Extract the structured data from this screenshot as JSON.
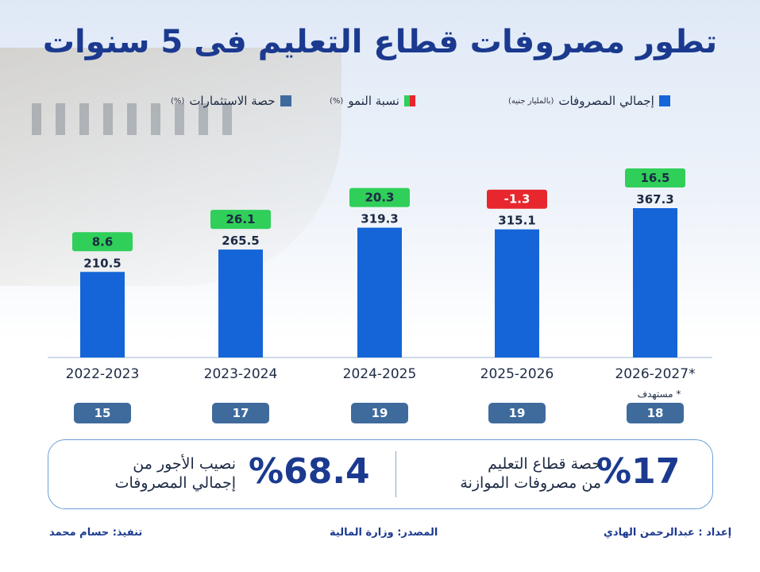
{
  "title": "تطور مصروفات قطاع التعليم فى 5 سنوات",
  "legend": {
    "total": "إجمالي المصروفات",
    "total_unit": "(بالمليار جنيه)",
    "growth": "نسبة النمو",
    "growth_unit": "(%)",
    "invest": "حصة الاستثمارات",
    "invest_unit": "(%)"
  },
  "colors": {
    "bar": "#1565d8",
    "growth_positive": "#2fcf5a",
    "growth_negative": "#e8262d",
    "invest_box": "#3f6b9c",
    "title": "#1b3a8f"
  },
  "chart_data": {
    "type": "bar",
    "categories": [
      "2022-2023",
      "2023-2024",
      "2024-2025",
      "2025-2026",
      "2026-2027*"
    ],
    "series": [
      {
        "name": "إجمالي المصروفات",
        "values": [
          210.5,
          265.5,
          319.3,
          315.1,
          367.3
        ]
      },
      {
        "name": "نسبة النمو",
        "values": [
          8.6,
          26.1,
          20.3,
          -1.3,
          16.5
        ]
      },
      {
        "name": "حصة الاستثمارات",
        "values": [
          15,
          17,
          19,
          19,
          18
        ]
      }
    ],
    "ylim": [
      0,
      400
    ],
    "grid": false,
    "legend": "top"
  },
  "labels": {
    "total": [
      "210.5",
      "265.5",
      "319.3",
      "315.1",
      "367.3"
    ],
    "growth": [
      "8.6",
      "26.1",
      "20.3",
      "-1.3",
      "16.5"
    ],
    "invest": [
      "15",
      "17",
      "19",
      "19",
      "18"
    ]
  },
  "note": "* مستهدف",
  "panel": {
    "right_value": "%17",
    "right_line1": "حصة قطاع التعليم",
    "right_line2": "من مصروفات الموازنة",
    "left_value": "%68.4",
    "left_line1": "نصيب الأجور من",
    "left_line2": "إجمالي المصروفات"
  },
  "footer": {
    "execution": "تنفيذ: حسام محمد",
    "source": "المصدر: وزارة المالية",
    "prepared": "إعداد : عبدالرحمن الهادي"
  }
}
